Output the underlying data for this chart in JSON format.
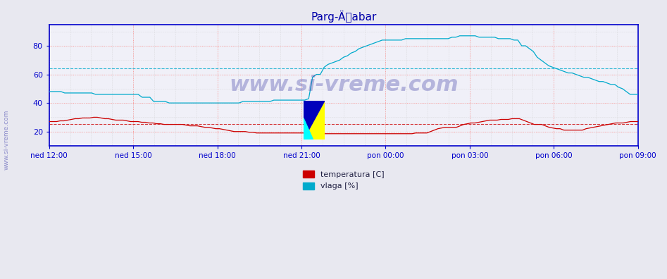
{
  "title": "Parg-Äabar",
  "x_labels": [
    "ned 12:00",
    "ned 15:00",
    "ned 18:00",
    "ned 21:00",
    "pon 00:00",
    "pon 03:00",
    "pon 06:00",
    "pon 09:00"
  ],
  "x_ticks_norm": [
    0,
    0.142857,
    0.285714,
    0.428571,
    0.571429,
    0.714286,
    0.857143,
    1.0
  ],
  "ylim": [
    10,
    95
  ],
  "yticks": [
    20,
    40,
    60,
    80
  ],
  "grid_color_major": "#ff9999",
  "grid_color_minor": "#cccccc",
  "bg_color": "#e8e8f0",
  "plot_bg_color": "#f0f0f8",
  "temp_color": "#cc0000",
  "vlaga_color": "#00aacc",
  "axis_color": "#0000cc",
  "watermark_text": "www.si-vreme.com",
  "watermark_color": "#4444aa",
  "watermark_alpha": 0.35,
  "legend_temp": "temperatura [C]",
  "legend_vlaga": "vlaga [%]",
  "hline_temp": 25.5,
  "hline_vlaga": 64.0,
  "hline_temp_color": "#cc0000",
  "hline_vlaga_color": "#00aacc",
  "temp_data": [
    27,
    27,
    27,
    27.5,
    27.5,
    28,
    28.5,
    29,
    29,
    29.5,
    29.5,
    29.5,
    30,
    30,
    29.5,
    29,
    29,
    28.5,
    28,
    28,
    28,
    27.5,
    27,
    27,
    27,
    26.5,
    26.5,
    26,
    26,
    25.5,
    25.5,
    25,
    25,
    25,
    25,
    25,
    25,
    24.5,
    24,
    24,
    24,
    23.5,
    23,
    23,
    22.5,
    22,
    22,
    21.5,
    21,
    20.5,
    20,
    20,
    20,
    20,
    19.5,
    19.5,
    19,
    19,
    19,
    19,
    19,
    19,
    19,
    19,
    19,
    19,
    19,
    19,
    19,
    19,
    19,
    19,
    18.5,
    18.5,
    18.5,
    18.5,
    18.5,
    18.5,
    18.5,
    18.5,
    18.5,
    18.5,
    18.5,
    18.5,
    18.5,
    18.5,
    18.5,
    18.5,
    18.5,
    18.5,
    18.5,
    18.5,
    18.5,
    18.5,
    18.5,
    18.5,
    18.5,
    18.5,
    18.5,
    19,
    19,
    19,
    19,
    20,
    21,
    22,
    22.5,
    23,
    23,
    23,
    23,
    24,
    25,
    25.5,
    26,
    26,
    26.5,
    27,
    27.5,
    28,
    28,
    28,
    28.5,
    28.5,
    28.5,
    29,
    29,
    29,
    28,
    27,
    26,
    25,
    25,
    25,
    24,
    23,
    22.5,
    22,
    22,
    21,
    21,
    21,
    21,
    21,
    21,
    22,
    22.5,
    23,
    23.5,
    24,
    24.5,
    25,
    25.5,
    26,
    26,
    26,
    26.5,
    27,
    27,
    27
  ],
  "vlaga_data": [
    48,
    48,
    48,
    48,
    47,
    47,
    47,
    47,
    47,
    47,
    47,
    47,
    46,
    46,
    46,
    46,
    46,
    46,
    46,
    46,
    46,
    46,
    46,
    46,
    44,
    44,
    44,
    41,
    41,
    41,
    41,
    40,
    40,
    40,
    40,
    40,
    40,
    40,
    40,
    40,
    40,
    40,
    40,
    40,
    40,
    40,
    40,
    40,
    40,
    40,
    41,
    41,
    41,
    41,
    41,
    41,
    41,
    41,
    42,
    42,
    42,
    42,
    42,
    42,
    42,
    42,
    42,
    43,
    58,
    60,
    60,
    65,
    67,
    68,
    69,
    70,
    72,
    73,
    75,
    76,
    78,
    79,
    80,
    81,
    82,
    83,
    84,
    84,
    84,
    84,
    84,
    84,
    85,
    85,
    85,
    85,
    85,
    85,
    85,
    85,
    85,
    85,
    85,
    85,
    86,
    86,
    87,
    87,
    87,
    87,
    87,
    86,
    86,
    86,
    86,
    86,
    85,
    85,
    85,
    85,
    84,
    84,
    80,
    80,
    78,
    76,
    72,
    70,
    68,
    66,
    65,
    64,
    63,
    62,
    61,
    61,
    60,
    59,
    58,
    58,
    57,
    56,
    55,
    55,
    54,
    53,
    53,
    51,
    50,
    48,
    46,
    46,
    46
  ]
}
